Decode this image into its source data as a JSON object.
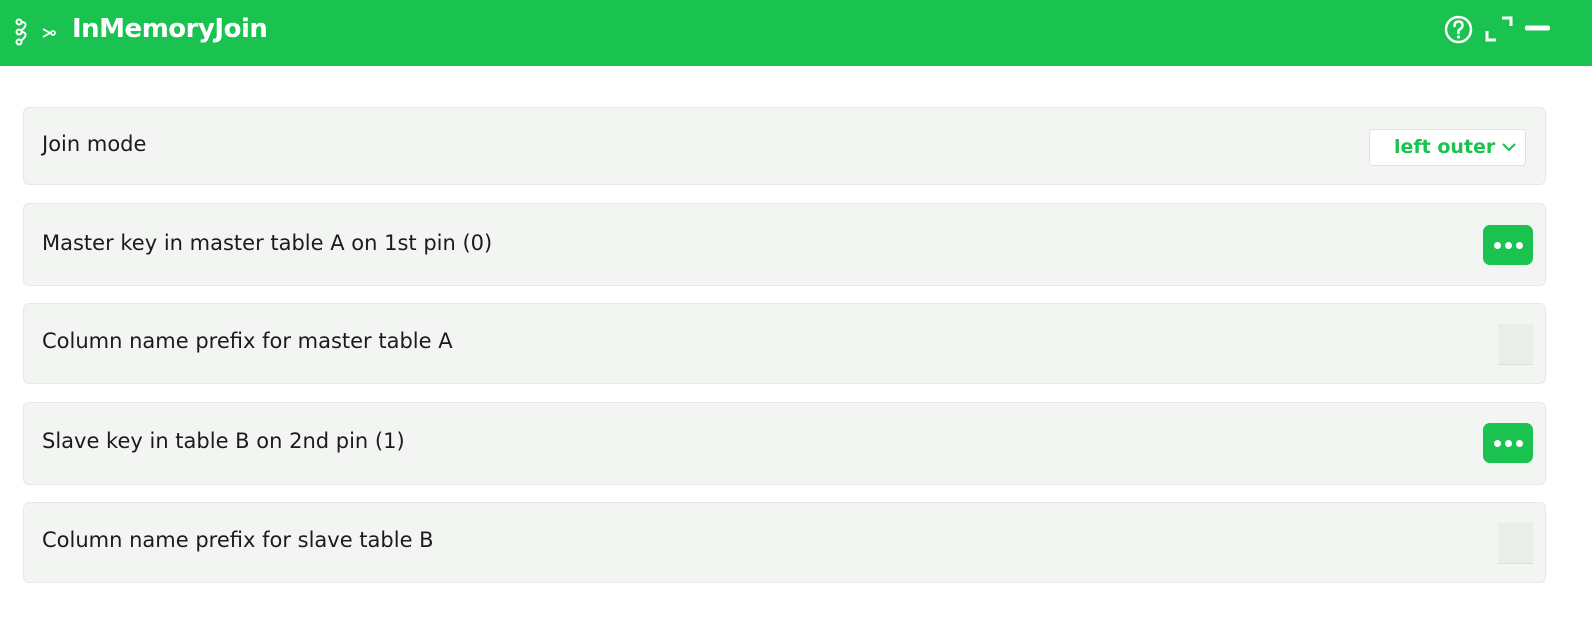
{
  "header": {
    "title": "InMemoryJoin",
    "background_color": "#1ac34f",
    "icons": [
      "node-graph-icon",
      "scissors-icon",
      "help-icon",
      "expand-icon",
      "minimize-icon"
    ]
  },
  "params": [
    {
      "label": "Join mode",
      "control": "select",
      "value": "left outer"
    },
    {
      "label": "Master key in master table A on 1st pin (0)",
      "control": "more-button"
    },
    {
      "label": "Column name prefix for master table A",
      "control": "text-input",
      "value": ""
    },
    {
      "label": "Slave key in table B on 2nd pin (1)",
      "control": "more-button"
    },
    {
      "label": "Column name prefix for slave table B",
      "control": "text-input",
      "value": ""
    }
  ]
}
